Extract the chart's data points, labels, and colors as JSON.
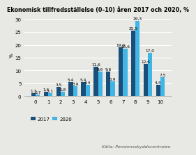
{
  "title": "Ekonomisk tillfredsställelse (0–10) åren 2017 och 2020, %",
  "categories": [
    0,
    1,
    2,
    3,
    4,
    5,
    6,
    7,
    8,
    9,
    10
  ],
  "values_2017": [
    1.3,
    1.6,
    3.5,
    5.4,
    5.4,
    11.6,
    9.6,
    19.0,
    25.5,
    12.6,
    4.4
  ],
  "values_2020": [
    0.7,
    1.1,
    1.8,
    3.9,
    4.4,
    9.6,
    5.9,
    18.6,
    29.3,
    17.0,
    7.5
  ],
  "color_2017": "#1a4f7a",
  "color_2020": "#41b6e6",
  "ylabel": "%",
  "ylim": [
    0,
    32
  ],
  "yticks": [
    0,
    5,
    10,
    15,
    20,
    25,
    30
  ],
  "source": "Källa: Pensionsskyddscentralen",
  "legend_labels": [
    "2017",
    "2020"
  ],
  "bar_width": 0.35,
  "title_fontsize": 5.8,
  "label_fontsize": 4.2,
  "tick_fontsize": 5.0,
  "source_fontsize": 4.5,
  "bg_color": "#e8e8e4"
}
